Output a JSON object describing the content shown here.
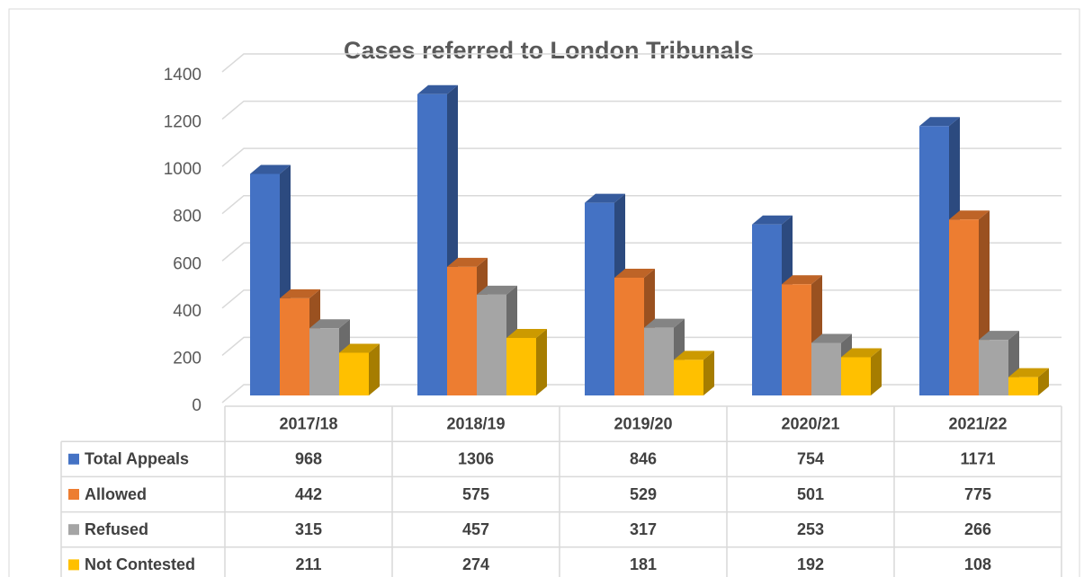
{
  "chart_data": {
    "type": "bar3d",
    "title": "Cases referred to London Tribunals",
    "categories": [
      "2017/18",
      "2018/19",
      "2019/20",
      "2020/21",
      "2021/22"
    ],
    "series": [
      {
        "name": "Total Appeals",
        "color": "#4472c4",
        "values": [
          968,
          1306,
          846,
          754,
          1171
        ]
      },
      {
        "name": "Allowed",
        "color": "#ed7d31",
        "values": [
          442,
          575,
          529,
          501,
          775
        ]
      },
      {
        "name": "Refused",
        "color": "#a5a5a5",
        "values": [
          315,
          457,
          317,
          253,
          266
        ]
      },
      {
        "name": "Not Contested",
        "color": "#ffc000",
        "values": [
          211,
          274,
          181,
          192,
          108
        ]
      }
    ],
    "ylim": [
      0,
      1400
    ],
    "yticks": [
      0,
      200,
      400,
      600,
      800,
      1000,
      1200,
      1400
    ],
    "grid": true
  }
}
